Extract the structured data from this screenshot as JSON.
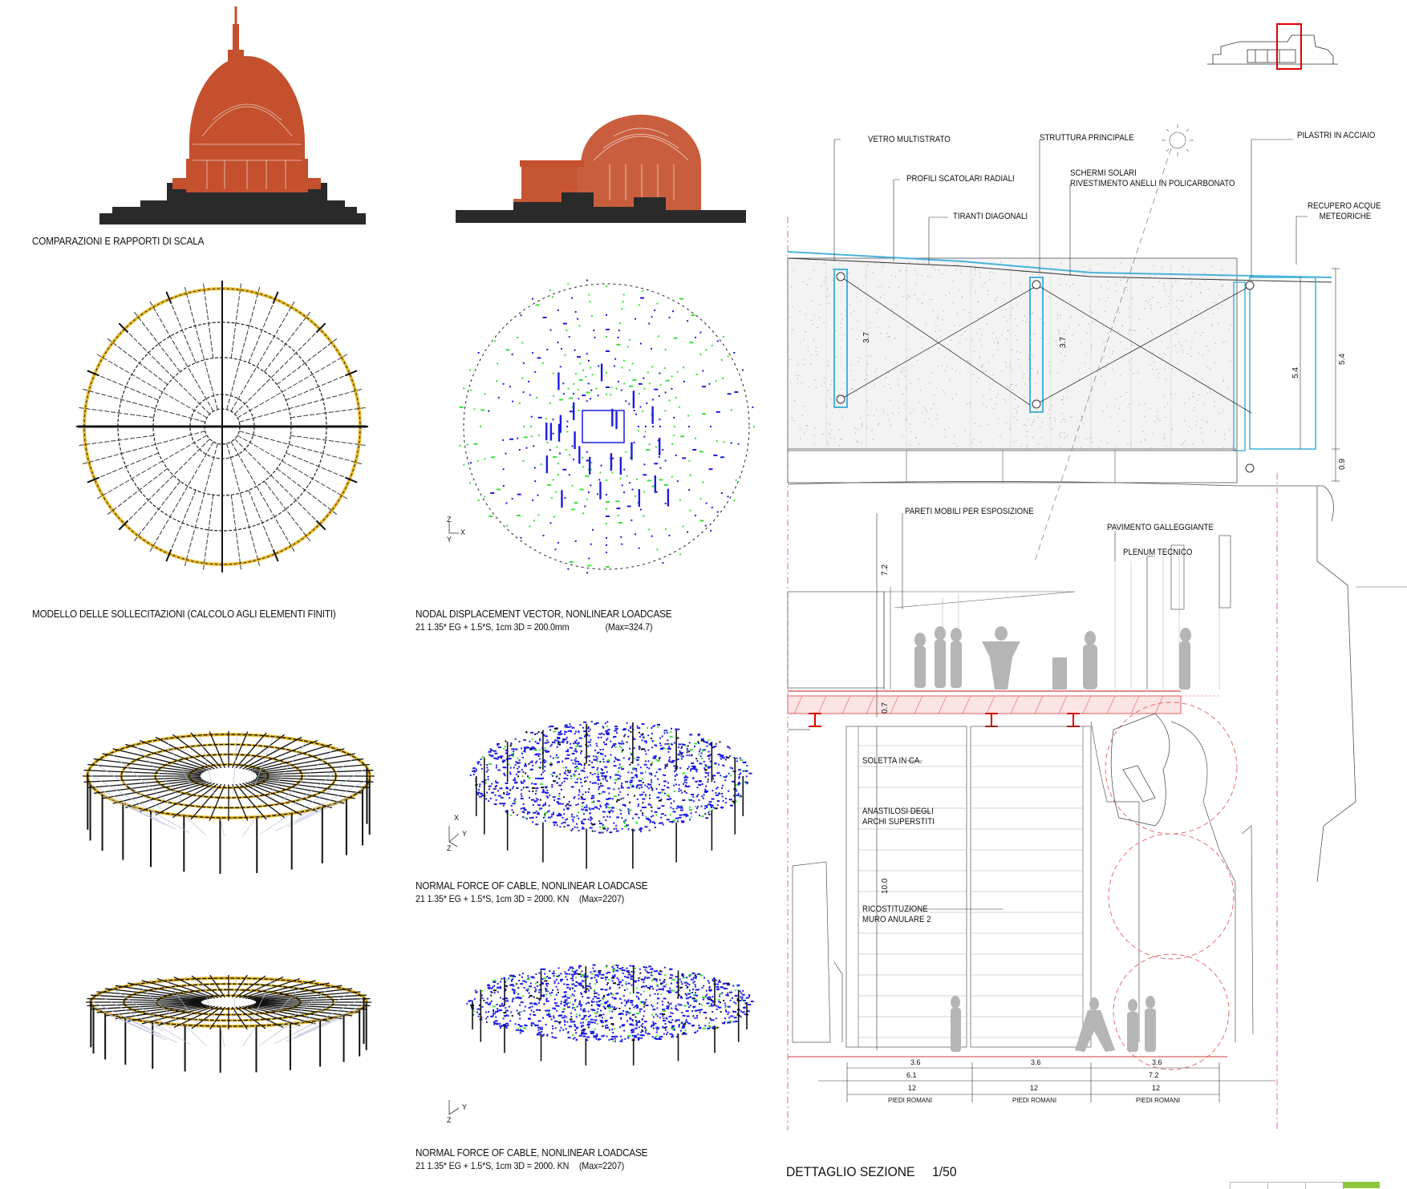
{
  "captions": {
    "scale_comparison": "COMPARAZIONI  E RAPPORTI DI SCALA",
    "fem_model": "MODELLO DELLE SOLLECITAZIONI  (CALCOLO AGLI ELEMENTI FINITI)",
    "nodal_title": "NODAL DISPLACEMENT VECTOR, NONLINEAR LOADCASE",
    "nodal_sub": "21 1.35* EG + 1.5*S, 1cm 3D = 200.0mm",
    "nodal_max": "(Max=324.7)",
    "cable1_title": "NORMAL FORCE OF CABLE, NONLINEAR LOADCASE",
    "cable1_sub": "21 1.35* EG + 1.5*S, 1cm 3D = 2000. KN",
    "cable1_max": "(Max=2207)",
    "cable2_title": "NORMAL FORCE OF CABLE, NONLINEAR LOADCASE",
    "cable2_sub": "21 1.35* EG + 1.5*S, 1cm 3D = 2000. KN",
    "cable2_max": "(Max=2207)"
  },
  "section": {
    "title": "DETTAGLIO SEZIONE",
    "scale": "1/50",
    "labels": {
      "vetro": "VETRO MULTISTRATO",
      "profili": "PROFILI SCATOLARI RADIALI",
      "tiranti": "TIRANTI DIAGONALI",
      "struttura": "STRUTTURA PRINCIPALE",
      "schermi1": "SCHERMI SOLARI",
      "schermi2": "RIVESTIMENTO ANELLI IN POLICARBONATO",
      "pilastri": "PILASTRI IN ACCIAIO",
      "recupero1": "RECUPERO ACQUE",
      "recupero2": "METEORICHE",
      "pareti": "PARETI MOBILI PER ESPOSIZIONE",
      "pavimento": "PAVIMENTO GALLEGGIANTE",
      "plenum": "PLENUM TECNICO",
      "soletta": "SOLETTA IN CA.",
      "anastilosi1": "ANASTILOSI DEGLI",
      "anastilosi2": "ARCHI SUPERSTITI",
      "ricostituzione1": "RICOSTITUZIONE",
      "ricostituzione2": "MURO ANULARE 2"
    },
    "dims": {
      "d37a": "3.7",
      "d37b": "3.7",
      "d54a": "5.4",
      "d54b": "5.4",
      "d09": "0.9",
      "d72v": "7.2",
      "d07": "0.7",
      "d100": "10.0",
      "d36a": "3.6",
      "d36b": "3.6",
      "d36c": "3.6",
      "d61": "6.1",
      "d72h": "7.2",
      "d12a": "12",
      "d12b": "12",
      "d12c": "12",
      "piedi_a": "PIEDI ROMANI",
      "piedi_b": "PIEDI ROMANI",
      "piedi_c": "PIEDI ROMANI"
    }
  },
  "axes": {
    "z": "Z",
    "x": "X",
    "y": "Y"
  },
  "colors": {
    "dome_red": "#c4502e",
    "dark_fill": "#2a2a2a",
    "structure_yellow": "#e8b928",
    "node_blue": "#1c1ce0",
    "node_green": "#3adf3a",
    "glass_cyan": "#48b4dc",
    "floor_red": "#e06060",
    "accent_green": "#8dc63f",
    "highlight_red": "#e00000"
  }
}
